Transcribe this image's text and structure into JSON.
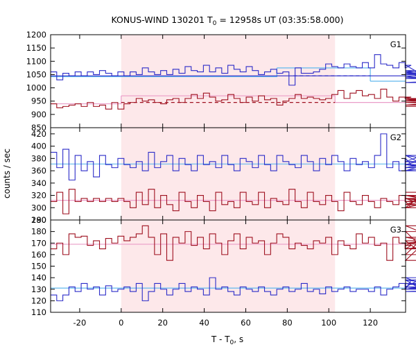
{
  "chart_data": {
    "type": "line",
    "title_main": "KONUS-WIND 130201 T",
    "title_sub": "0",
    "title_rest": " = 12958s UT (03:35:58.000)",
    "xlabel_main": "T - T",
    "xlabel_sub": "0",
    "xlabel_rest": ", s",
    "ylabel": "counts / sec",
    "xlim": [
      -34,
      137
    ],
    "x_ticks": [
      -20,
      0,
      20,
      40,
      60,
      80,
      100,
      120
    ],
    "x_tick_labels": [
      "-20",
      "0",
      "20",
      "40",
      "60",
      "80",
      "100",
      "120"
    ],
    "shaded_interval": [
      0,
      103
    ],
    "shade_color": "#fde8ea",
    "colors": {
      "blue": "#2b2bc8",
      "red": "#9e0f1e",
      "fit_blue": "#60b8ee",
      "fit_pink": "#ea9cc8"
    },
    "bin_start": -34,
    "bin_width": 2.944,
    "panels": [
      {
        "name": "G1",
        "ylim": [
          850,
          1200
        ],
        "y_ticks": [
          850,
          900,
          950,
          1000,
          1050,
          1100,
          1150,
          1200
        ],
        "y_tick_labels": [
          "850",
          "900",
          "950",
          "1000",
          "1050",
          "1100",
          "1150",
          "1200"
        ],
        "series": [
          {
            "color": "blue",
            "values": [
              1060,
              1030,
              1055,
              1045,
              1060,
              1045,
              1060,
              1050,
              1065,
              1055,
              1045,
              1060,
              1045,
              1060,
              1050,
              1075,
              1060,
              1050,
              1065,
              1050,
              1070,
              1055,
              1080,
              1065,
              1060,
              1085,
              1060,
              1075,
              1055,
              1085,
              1070,
              1060,
              1080,
              1065,
              1050,
              1060,
              1070,
              1055,
              1060,
              1010,
              1075,
              1055,
              1055,
              1060,
              1070,
              1090,
              1080,
              1075,
              1090,
              1080,
              1075,
              1095,
              1075,
              1125,
              1090,
              1085,
              1075,
              1095,
              1075,
              1085,
              1060,
              1040,
              1055,
              1050,
              1065,
              1040,
              1040,
              1035,
              1050,
              1060,
              1020,
              1035
            ]
          },
          {
            "color": "red",
            "values": [
              940,
              925,
              930,
              935,
              940,
              930,
              945,
              930,
              935,
              920,
              945,
              920,
              940,
              945,
              960,
              950,
              955,
              945,
              940,
              955,
              960,
              945,
              960,
              975,
              960,
              980,
              965,
              950,
              955,
              975,
              960,
              945,
              965,
              950,
              970,
              955,
              960,
              935,
              950,
              960,
              975,
              960,
              965,
              960,
              955,
              960,
              975,
              990,
              960,
              980,
              990,
              970,
              975,
              960,
              995,
              965,
              950,
              965,
              960,
              965,
              950,
              955,
              960,
              955,
              960,
              945,
              950,
              960,
              945,
              935,
              955,
              930
            ]
          },
          {
            "color": "blue",
            "values": [
              1045,
              1045,
              1045,
              1045,
              1045,
              1045,
              1045,
              1045,
              1045,
              1045,
              1045,
              1045,
              1045,
              1045,
              1045,
              1045,
              1045,
              1045,
              1045,
              1045,
              1045,
              1045,
              1045,
              1045,
              1045,
              1045,
              1045,
              1045,
              1045,
              1045,
              1045,
              1045,
              1045,
              1045,
              1045,
              1045,
              1045,
              1045,
              1045,
              1045,
              1045,
              1045,
              1045,
              1045,
              1045,
              1045,
              1045,
              1045,
              1045,
              1045,
              1045,
              1045,
              1045,
              1045,
              1045,
              1045,
              1045,
              1045,
              1045,
              1045,
              1045,
              1045,
              1045,
              1045,
              1045,
              1045,
              1045,
              1045,
              1045,
              1045,
              1045,
              1045
            ]
          }
        ],
        "fits": [
          {
            "color": "fit_blue",
            "segments": [
              [
                -34,
                1042,
                75,
                1042
              ],
              [
                75,
                1075,
                120,
                1075
              ],
              [
                120,
                1025,
                137,
                1025
              ]
            ]
          },
          {
            "color": "fit_pink",
            "segments": [
              [
                -34,
                940,
                0,
                940
              ],
              [
                0,
                970,
                103,
                970
              ],
              [
                103,
                945,
                137,
                945
              ]
            ]
          }
        ],
        "dashed": [
          {
            "color": "blue",
            "x0": 83,
            "x1": 120,
            "y": 1045
          },
          {
            "color": "red",
            "x0": 0,
            "x1": 103,
            "y": 945
          }
        ]
      },
      {
        "name": "G2",
        "ylim": [
          280,
          430
        ],
        "y_ticks": [
          280,
          300,
          320,
          340,
          360,
          380,
          400,
          420
        ],
        "y_tick_labels": [
          "280",
          "300",
          "320",
          "340",
          "360",
          "380",
          "400",
          "420"
        ],
        "series": [
          {
            "color": "blue",
            "values": [
              390,
              365,
              395,
              345,
              385,
              360,
              375,
              350,
              385,
              370,
              365,
              380,
              370,
              365,
              375,
              360,
              390,
              365,
              375,
              385,
              360,
              380,
              370,
              360,
              385,
              370,
              375,
              365,
              385,
              370,
              360,
              380,
              375,
              365,
              385,
              370,
              360,
              385,
              375,
              370,
              365,
              385,
              375,
              360,
              380,
              370,
              385,
              375,
              360,
              380,
              370,
              375,
              365,
              385,
              420,
              365,
              375,
              360,
              380,
              370,
              375,
              385,
              365,
              375,
              370,
              360,
              385,
              370,
              360,
              375,
              365,
              370
            ]
          },
          {
            "color": "red",
            "values": [
              310,
              325,
              290,
              330,
              310,
              315,
              310,
              315,
              310,
              315,
              310,
              315,
              310,
              300,
              325,
              305,
              330,
              300,
              320,
              305,
              295,
              325,
              310,
              300,
              320,
              310,
              295,
              325,
              305,
              310,
              300,
              325,
              310,
              305,
              325,
              300,
              315,
              310,
              305,
              330,
              310,
              300,
              325,
              310,
              305,
              320,
              310,
              295,
              325,
              310,
              305,
              320,
              310,
              300,
              315,
              310,
              305,
              320,
              310,
              300,
              315,
              305,
              320,
              310,
              315,
              305,
              300,
              320,
              310,
              315,
              305,
              325
            ]
          }
        ],
        "fits": [
          {
            "color": "fit_blue",
            "segments": [
              [
                -34,
                371,
                137,
                371
              ]
            ]
          },
          {
            "color": "fit_pink",
            "segments": [
              [
                -34,
                312,
                137,
                312
              ]
            ]
          }
        ],
        "dashed": []
      },
      {
        "name": "G3",
        "ylim": [
          110,
          190
        ],
        "y_ticks": [
          110,
          120,
          130,
          140,
          150,
          160,
          170,
          180,
          190
        ],
        "y_tick_labels": [
          "110",
          "120",
          "130",
          "140",
          "150",
          "160",
          "170",
          "180",
          "190"
        ],
        "series": [
          {
            "color": "red",
            "values": [
              165,
              170,
              160,
              178,
              175,
              176,
              168,
              172,
              165,
              174,
              170,
              176,
              172,
              175,
              178,
              185,
              175,
              160,
              178,
              155,
              175,
              170,
              180,
              168,
              175,
              165,
              178,
              170,
              160,
              172,
              178,
              165,
              175,
              170,
              172,
              160,
              170,
              178,
              175,
              165,
              170,
              168,
              165,
              172,
              170,
              175,
              160,
              172,
              168,
              165,
              178,
              170,
              175,
              168,
              170,
              155,
              175,
              170,
              165,
              168,
              172,
              160,
              180,
              155,
              185,
              170,
              165,
              170,
              175,
              165,
              170,
              172
            ]
          },
          {
            "color": "blue",
            "values": [
              125,
              120,
              125,
              132,
              128,
              135,
              130,
              132,
              125,
              133,
              128,
              130,
              132,
              128,
              135,
              120,
              128,
              135,
              130,
              125,
              130,
              135,
              128,
              132,
              130,
              125,
              140,
              130,
              132,
              128,
              125,
              132,
              130,
              128,
              132,
              128,
              125,
              130,
              132,
              128,
              130,
              135,
              128,
              130,
              126,
              132,
              128,
              130,
              132,
              128,
              130,
              130,
              128,
              132,
              125,
              130,
              132,
              135,
              130,
              138,
              132,
              140,
              132,
              130,
              135,
              130,
              138,
              132,
              128,
              130,
              135,
              132
            ]
          }
        ],
        "fits": [
          {
            "color": "fit_pink",
            "segments": [
              [
                -34,
                169,
                137,
                169
              ]
            ]
          },
          {
            "color": "fit_blue",
            "segments": [
              [
                -34,
                131,
                137,
                131
              ]
            ]
          }
        ],
        "dashed": []
      }
    ]
  }
}
